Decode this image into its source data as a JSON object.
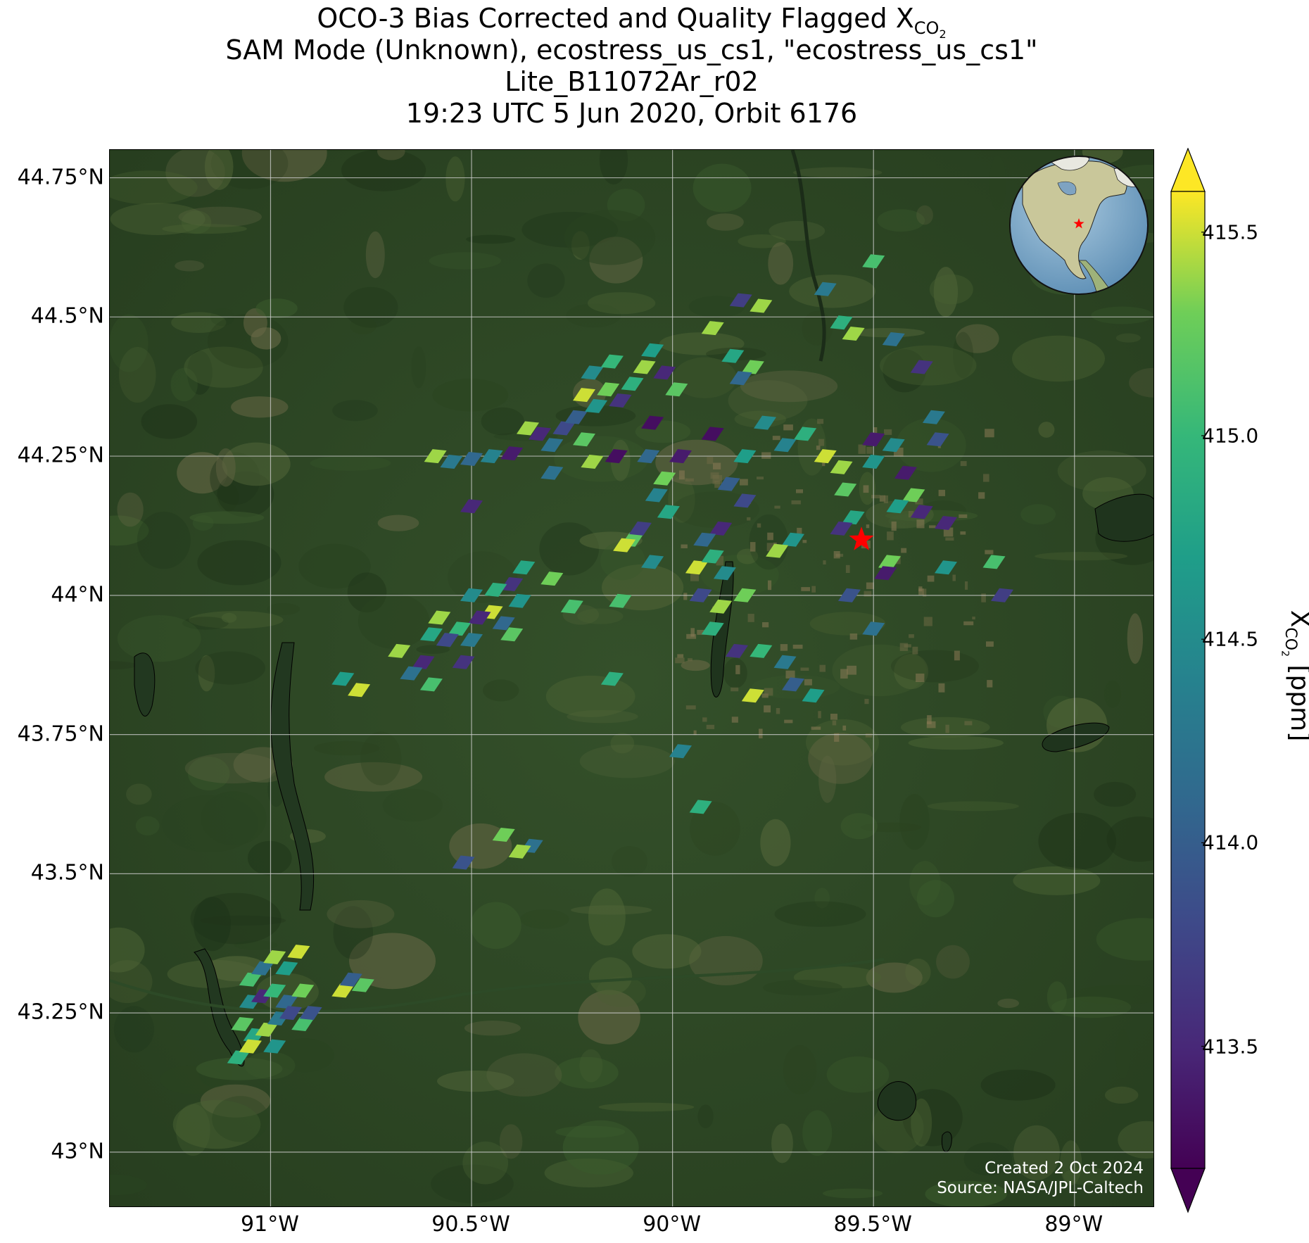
{
  "title": {
    "line1_prefix": "OCO-3 Bias Corrected and Quality Flagged X",
    "line1_sub": "CO",
    "line1_subsub": "2",
    "line2": "SAM Mode (Unknown), ecostress_us_cs1, \"ecostress_us_cs1\"",
    "line3": "Lite_B11072Ar_r02",
    "line4": "19:23 UTC 5 Jun 2020, Orbit 6176"
  },
  "map": {
    "lat_labels": [
      "44.75°N",
      "44.5°N",
      "44.25°N",
      "44°N",
      "43.75°N",
      "43.5°N",
      "43.25°N",
      "43°N"
    ],
    "lat_values": [
      44.75,
      44.5,
      44.25,
      44.0,
      43.75,
      43.5,
      43.25,
      43.0
    ],
    "lon_labels": [
      "91°W",
      "90.5°W",
      "90°W",
      "89.5°W",
      "89°W"
    ],
    "lon_values": [
      -91.0,
      -90.5,
      -90.0,
      -89.5,
      -89.0
    ],
    "lat_range": [
      42.9,
      44.8
    ],
    "lon_range": [
      -91.4,
      -88.8
    ],
    "target_site": {
      "lat": 44.1,
      "lon": -89.53,
      "marker": "red-star-icon"
    },
    "basemap": "satellite imagery",
    "gridlines": true
  },
  "credits": {
    "created": "Created 2 Oct 2024",
    "source": "Source: NASA/JPL-Caltech"
  },
  "inset_globe": {
    "marker": "red-star-icon",
    "region": "North America"
  },
  "colorbar": {
    "label_prefix": "X",
    "label_sub": "CO",
    "label_subsub": "2",
    "label_suffix": " [ppm]",
    "ticks": [
      "415.5",
      "415.0",
      "414.5",
      "414.0",
      "413.5"
    ],
    "tick_values": [
      415.5,
      415.0,
      414.5,
      414.0,
      413.5
    ],
    "range": [
      413.2,
      415.6
    ],
    "colormap": "viridis",
    "extend": "both"
  },
  "soundings": [
    {
      "lon": -90.59,
      "lat": 44.25,
      "xco2": 415.4
    },
    {
      "lon": -90.55,
      "lat": 44.24,
      "xco2": 414.3
    },
    {
      "lon": -90.5,
      "lat": 44.245,
      "xco2": 414.1
    },
    {
      "lon": -90.45,
      "lat": 44.25,
      "xco2": 414.4
    },
    {
      "lon": -90.4,
      "lat": 44.255,
      "xco2": 413.4
    },
    {
      "lon": -90.36,
      "lat": 44.3,
      "xco2": 415.4
    },
    {
      "lon": -90.33,
      "lat": 44.29,
      "xco2": 413.5
    },
    {
      "lon": -90.3,
      "lat": 44.27,
      "xco2": 414.2
    },
    {
      "lon": -90.27,
      "lat": 44.3,
      "xco2": 413.8
    },
    {
      "lon": -90.24,
      "lat": 44.32,
      "xco2": 414.0
    },
    {
      "lon": -90.22,
      "lat": 44.36,
      "xco2": 415.5
    },
    {
      "lon": -90.19,
      "lat": 44.34,
      "xco2": 414.6
    },
    {
      "lon": -90.16,
      "lat": 44.37,
      "xco2": 415.3
    },
    {
      "lon": -90.13,
      "lat": 44.35,
      "xco2": 413.6
    },
    {
      "lon": -90.1,
      "lat": 44.38,
      "xco2": 414.9
    },
    {
      "lon": -90.2,
      "lat": 44.4,
      "xco2": 414.5
    },
    {
      "lon": -90.15,
      "lat": 44.42,
      "xco2": 415.0
    },
    {
      "lon": -90.07,
      "lat": 44.41,
      "xco2": 415.4
    },
    {
      "lon": -90.05,
      "lat": 44.44,
      "xco2": 414.7
    },
    {
      "lon": -90.02,
      "lat": 44.4,
      "xco2": 413.5
    },
    {
      "lon": -89.99,
      "lat": 44.37,
      "xco2": 415.2
    },
    {
      "lon": -90.05,
      "lat": 44.31,
      "xco2": 413.3
    },
    {
      "lon": -89.9,
      "lat": 44.48,
      "xco2": 415.4
    },
    {
      "lon": -89.85,
      "lat": 44.43,
      "xco2": 414.8
    },
    {
      "lon": -89.8,
      "lat": 44.41,
      "xco2": 415.3
    },
    {
      "lon": -89.83,
      "lat": 44.53,
      "xco2": 413.7
    },
    {
      "lon": -89.78,
      "lat": 44.52,
      "xco2": 415.4
    },
    {
      "lon": -89.9,
      "lat": 44.29,
      "xco2": 413.3
    },
    {
      "lon": -89.83,
      "lat": 44.39,
      "xco2": 414.1
    },
    {
      "lon": -89.62,
      "lat": 44.55,
      "xco2": 414.3
    },
    {
      "lon": -89.58,
      "lat": 44.49,
      "xco2": 414.9
    },
    {
      "lon": -89.55,
      "lat": 44.47,
      "xco2": 415.4
    },
    {
      "lon": -89.5,
      "lat": 44.6,
      "xco2": 415.1
    },
    {
      "lon": -89.45,
      "lat": 44.46,
      "xco2": 414.2
    },
    {
      "lon": -89.38,
      "lat": 44.41,
      "xco2": 413.6
    },
    {
      "lon": -89.35,
      "lat": 44.32,
      "xco2": 414.3
    },
    {
      "lon": -89.34,
      "lat": 44.28,
      "xco2": 413.9
    },
    {
      "lon": -89.45,
      "lat": 44.27,
      "xco2": 414.5
    },
    {
      "lon": -89.42,
      "lat": 44.22,
      "xco2": 413.4
    },
    {
      "lon": -89.4,
      "lat": 44.18,
      "xco2": 415.3
    },
    {
      "lon": -89.38,
      "lat": 44.15,
      "xco2": 413.5
    },
    {
      "lon": -89.44,
      "lat": 44.16,
      "xco2": 414.7
    },
    {
      "lon": -89.5,
      "lat": 44.24,
      "xco2": 414.6
    },
    {
      "lon": -89.5,
      "lat": 44.28,
      "xco2": 413.4
    },
    {
      "lon": -89.58,
      "lat": 44.23,
      "xco2": 415.4
    },
    {
      "lon": -89.62,
      "lat": 44.25,
      "xco2": 415.5
    },
    {
      "lon": -89.57,
      "lat": 44.19,
      "xco2": 415.2
    },
    {
      "lon": -89.55,
      "lat": 44.14,
      "xco2": 414.8
    },
    {
      "lon": -89.58,
      "lat": 44.12,
      "xco2": 413.6
    },
    {
      "lon": -89.67,
      "lat": 44.29,
      "xco2": 414.9
    },
    {
      "lon": -89.72,
      "lat": 44.27,
      "xco2": 414.4
    },
    {
      "lon": -89.7,
      "lat": 44.1,
      "xco2": 414.6
    },
    {
      "lon": -89.74,
      "lat": 44.08,
      "xco2": 415.4
    },
    {
      "lon": -89.77,
      "lat": 44.31,
      "xco2": 414.5
    },
    {
      "lon": -89.82,
      "lat": 44.25,
      "xco2": 414.7
    },
    {
      "lon": -89.86,
      "lat": 44.2,
      "xco2": 414.0
    },
    {
      "lon": -89.82,
      "lat": 44.17,
      "xco2": 413.8
    },
    {
      "lon": -89.88,
      "lat": 44.12,
      "xco2": 413.5
    },
    {
      "lon": -89.92,
      "lat": 44.1,
      "xco2": 414.1
    },
    {
      "lon": -89.94,
      "lat": 44.05,
      "xco2": 415.5
    },
    {
      "lon": -89.9,
      "lat": 44.07,
      "xco2": 414.9
    },
    {
      "lon": -89.93,
      "lat": 44.0,
      "xco2": 413.8
    },
    {
      "lon": -89.87,
      "lat": 44.04,
      "xco2": 414.5
    },
    {
      "lon": -89.88,
      "lat": 43.98,
      "xco2": 415.4
    },
    {
      "lon": -89.82,
      "lat": 44.0,
      "xco2": 415.3
    },
    {
      "lon": -89.9,
      "lat": 43.94,
      "xco2": 414.9
    },
    {
      "lon": -89.84,
      "lat": 43.9,
      "xco2": 413.6
    },
    {
      "lon": -89.78,
      "lat": 43.9,
      "xco2": 415.0
    },
    {
      "lon": -89.72,
      "lat": 43.88,
      "xco2": 414.3
    },
    {
      "lon": -89.7,
      "lat": 43.84,
      "xco2": 414.0
    },
    {
      "lon": -89.65,
      "lat": 43.82,
      "xco2": 414.7
    },
    {
      "lon": -89.8,
      "lat": 43.82,
      "xco2": 415.5
    },
    {
      "lon": -89.98,
      "lat": 43.72,
      "xco2": 414.4
    },
    {
      "lon": -89.93,
      "lat": 43.62,
      "xco2": 414.9
    },
    {
      "lon": -90.1,
      "lat": 44.1,
      "xco2": 415.2
    },
    {
      "lon": -90.12,
      "lat": 44.09,
      "xco2": 415.5
    },
    {
      "lon": -90.08,
      "lat": 44.12,
      "xco2": 413.7
    },
    {
      "lon": -90.05,
      "lat": 44.06,
      "xco2": 414.5
    },
    {
      "lon": -90.13,
      "lat": 43.99,
      "xco2": 415.1
    },
    {
      "lon": -90.04,
      "lat": 44.18,
      "xco2": 414.4
    },
    {
      "lon": -90.02,
      "lat": 44.21,
      "xco2": 415.3
    },
    {
      "lon": -90.01,
      "lat": 44.15,
      "xco2": 414.8
    },
    {
      "lon": -89.98,
      "lat": 44.25,
      "xco2": 413.4
    },
    {
      "lon": -90.06,
      "lat": 44.25,
      "xco2": 414.1
    },
    {
      "lon": -90.14,
      "lat": 44.25,
      "xco2": 413.3
    },
    {
      "lon": -90.2,
      "lat": 44.24,
      "xco2": 415.4
    },
    {
      "lon": -90.22,
      "lat": 44.28,
      "xco2": 415.2
    },
    {
      "lon": -90.3,
      "lat": 44.22,
      "xco2": 414.2
    },
    {
      "lon": -90.37,
      "lat": 44.05,
      "xco2": 414.8
    },
    {
      "lon": -90.4,
      "lat": 44.02,
      "xco2": 413.6
    },
    {
      "lon": -90.44,
      "lat": 44.01,
      "xco2": 414.9
    },
    {
      "lon": -90.38,
      "lat": 43.99,
      "xco2": 414.6
    },
    {
      "lon": -90.45,
      "lat": 43.97,
      "xco2": 415.5
    },
    {
      "lon": -90.42,
      "lat": 43.95,
      "xco2": 414.1
    },
    {
      "lon": -90.48,
      "lat": 43.96,
      "xco2": 413.5
    },
    {
      "lon": -90.4,
      "lat": 43.93,
      "xco2": 415.2
    },
    {
      "lon": -90.5,
      "lat": 43.92,
      "xco2": 414.3
    },
    {
      "lon": -90.53,
      "lat": 43.94,
      "xco2": 415.0
    },
    {
      "lon": -90.56,
      "lat": 43.92,
      "xco2": 413.8
    },
    {
      "lon": -90.5,
      "lat": 44.0,
      "xco2": 414.5
    },
    {
      "lon": -90.58,
      "lat": 43.96,
      "xco2": 415.4
    },
    {
      "lon": -90.6,
      "lat": 43.93,
      "xco2": 414.8
    },
    {
      "lon": -90.62,
      "lat": 43.88,
      "xco2": 413.5
    },
    {
      "lon": -90.65,
      "lat": 43.86,
      "xco2": 414.2
    },
    {
      "lon": -90.6,
      "lat": 43.84,
      "xco2": 415.1
    },
    {
      "lon": -90.68,
      "lat": 43.9,
      "xco2": 415.4
    },
    {
      "lon": -90.52,
      "lat": 43.88,
      "xco2": 413.6
    },
    {
      "lon": -90.3,
      "lat": 44.03,
      "xco2": 415.3
    },
    {
      "lon": -90.25,
      "lat": 43.98,
      "xco2": 415.1
    },
    {
      "lon": -90.15,
      "lat": 43.85,
      "xco2": 414.9
    },
    {
      "lon": -90.82,
      "lat": 43.85,
      "xco2": 414.7
    },
    {
      "lon": -90.78,
      "lat": 43.83,
      "xco2": 415.5
    },
    {
      "lon": -90.5,
      "lat": 44.16,
      "xco2": 413.5
    },
    {
      "lon": -90.42,
      "lat": 43.57,
      "xco2": 415.3
    },
    {
      "lon": -90.35,
      "lat": 43.55,
      "xco2": 414.2
    },
    {
      "lon": -90.38,
      "lat": 43.54,
      "xco2": 415.4
    },
    {
      "lon": -90.52,
      "lat": 43.52,
      "xco2": 413.9
    },
    {
      "lon": -89.32,
      "lat": 44.13,
      "xco2": 413.5
    },
    {
      "lon": -89.2,
      "lat": 44.06,
      "xco2": 415.1
    },
    {
      "lon": -89.18,
      "lat": 44.0,
      "xco2": 413.7
    },
    {
      "lon": -89.46,
      "lat": 44.06,
      "xco2": 415.3
    },
    {
      "lon": -89.47,
      "lat": 44.04,
      "xco2": 413.4
    },
    {
      "lon": -89.5,
      "lat": 43.94,
      "xco2": 414.2
    },
    {
      "lon": -89.56,
      "lat": 44.0,
      "xco2": 413.9
    },
    {
      "lon": -89.32,
      "lat": 44.05,
      "xco2": 414.6
    },
    {
      "lon": -91.05,
      "lat": 43.31,
      "xco2": 415.1
    },
    {
      "lon": -91.02,
      "lat": 43.33,
      "xco2": 414.2
    },
    {
      "lon": -90.99,
      "lat": 43.35,
      "xco2": 415.4
    },
    {
      "lon": -90.96,
      "lat": 43.33,
      "xco2": 414.7
    },
    {
      "lon": -90.93,
      "lat": 43.36,
      "xco2": 415.5
    },
    {
      "lon": -91.05,
      "lat": 43.27,
      "xco2": 414.5
    },
    {
      "lon": -91.02,
      "lat": 43.28,
      "xco2": 413.5
    },
    {
      "lon": -90.99,
      "lat": 43.29,
      "xco2": 415.0
    },
    {
      "lon": -90.96,
      "lat": 43.27,
      "xco2": 414.1
    },
    {
      "lon": -90.92,
      "lat": 43.29,
      "xco2": 415.3
    },
    {
      "lon": -91.07,
      "lat": 43.23,
      "xco2": 415.2
    },
    {
      "lon": -91.04,
      "lat": 43.21,
      "xco2": 414.8
    },
    {
      "lon": -91.01,
      "lat": 43.22,
      "xco2": 415.4
    },
    {
      "lon": -90.98,
      "lat": 43.24,
      "xco2": 414.3
    },
    {
      "lon": -90.95,
      "lat": 43.25,
      "xco2": 413.8
    },
    {
      "lon": -90.92,
      "lat": 43.23,
      "xco2": 415.1
    },
    {
      "lon": -91.08,
      "lat": 43.17,
      "xco2": 414.9
    },
    {
      "lon": -91.05,
      "lat": 43.19,
      "xco2": 415.5
    },
    {
      "lon": -90.99,
      "lat": 43.19,
      "xco2": 414.6
    },
    {
      "lon": -90.9,
      "lat": 43.25,
      "xco2": 413.9
    },
    {
      "lon": -90.82,
      "lat": 43.29,
      "xco2": 415.5
    },
    {
      "lon": -90.8,
      "lat": 43.31,
      "xco2": 414.0
    },
    {
      "lon": -90.77,
      "lat": 43.3,
      "xco2": 415.2
    }
  ]
}
